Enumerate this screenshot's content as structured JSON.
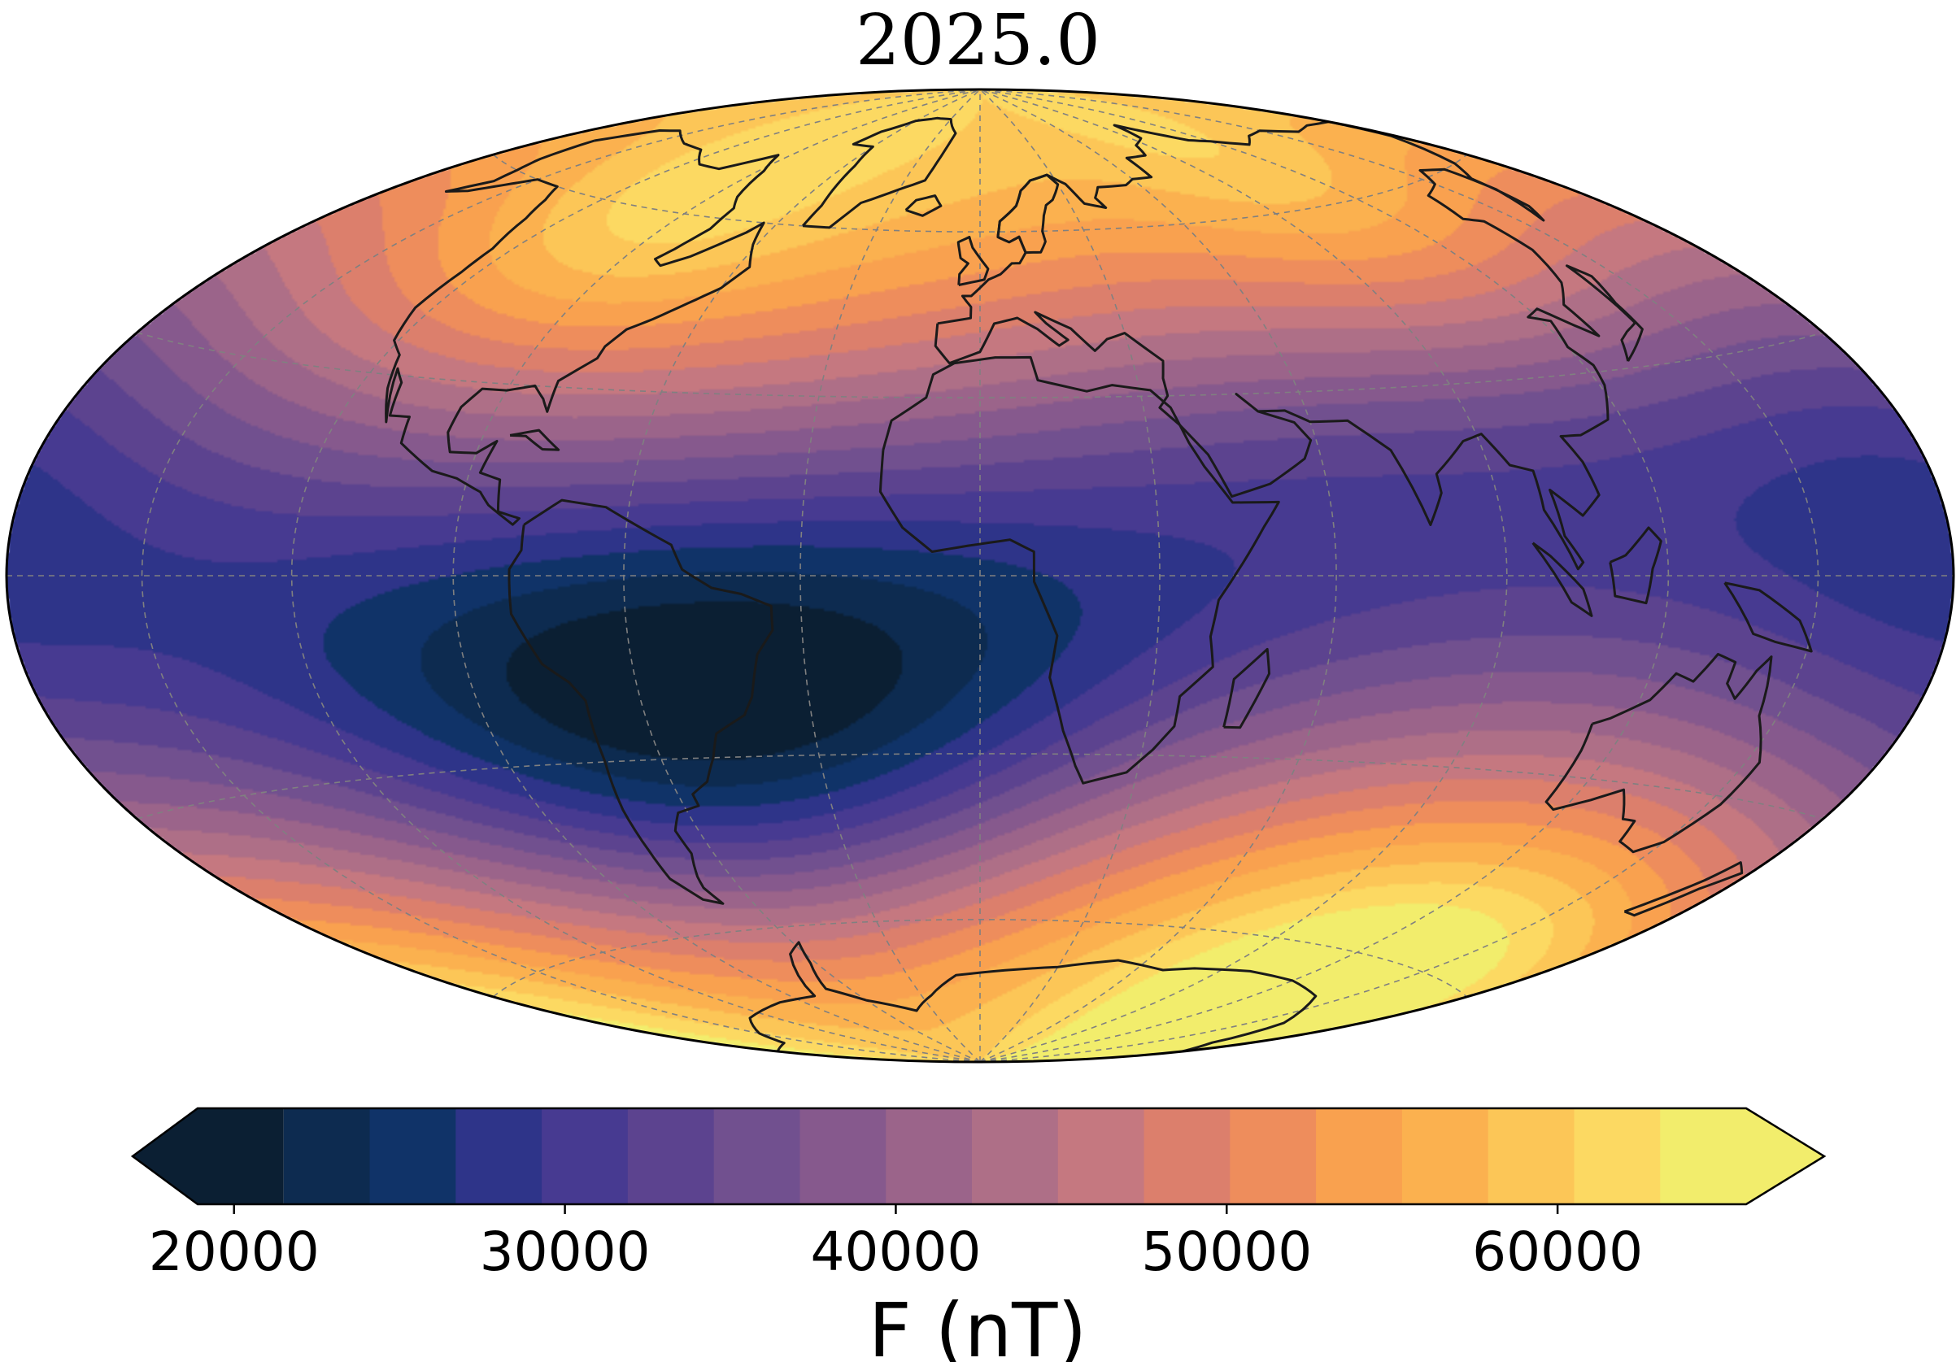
{
  "title": "2025.0",
  "colorbar": {
    "label": "F (nT)",
    "min": 19000,
    "max": 66500,
    "bin_edges": [
      21500,
      24100,
      26700,
      29300,
      31900,
      34500,
      37100,
      39700,
      42300,
      44900,
      47500,
      50100,
      52700,
      55300,
      57900,
      60500,
      63100
    ],
    "ticks": [
      {
        "value": 20000,
        "label": "20000"
      },
      {
        "value": 30000,
        "label": "30000"
      },
      {
        "value": 40000,
        "label": "40000"
      },
      {
        "value": 50000,
        "label": "50000"
      },
      {
        "value": 60000,
        "label": "60000"
      }
    ],
    "colors": [
      "#0b1f33",
      "#0d2b50",
      "#103368",
      "#2e3489",
      "#473a91",
      "#5c438f",
      "#71508f",
      "#86598d",
      "#9b648a",
      "#ae6f87",
      "#c57880",
      "#dc7f6c",
      "#ee8d5c",
      "#f9a14f",
      "#fbb14f",
      "#fcc657",
      "#fcd962",
      "#f2ed6c"
    ]
  },
  "chart_data": {
    "type": "heatmap",
    "projection": "Hammer (world map)",
    "title": "2025.0",
    "colorbar_label": "F (nT)",
    "value_range": [
      19000,
      66500
    ],
    "features": [
      {
        "name": "South Atlantic minimum",
        "value": 21000,
        "lon": -50,
        "lat": -25
      },
      {
        "name": "Antarctic maximum (south of Australia)",
        "value": 66000,
        "lon": 135,
        "lat": -65
      },
      {
        "name": "Siberian maximum",
        "value": 61000,
        "lon": 110,
        "lat": 55
      },
      {
        "name": "North American maximum",
        "value": 60000,
        "lon": -95,
        "lat": 55
      }
    ]
  }
}
